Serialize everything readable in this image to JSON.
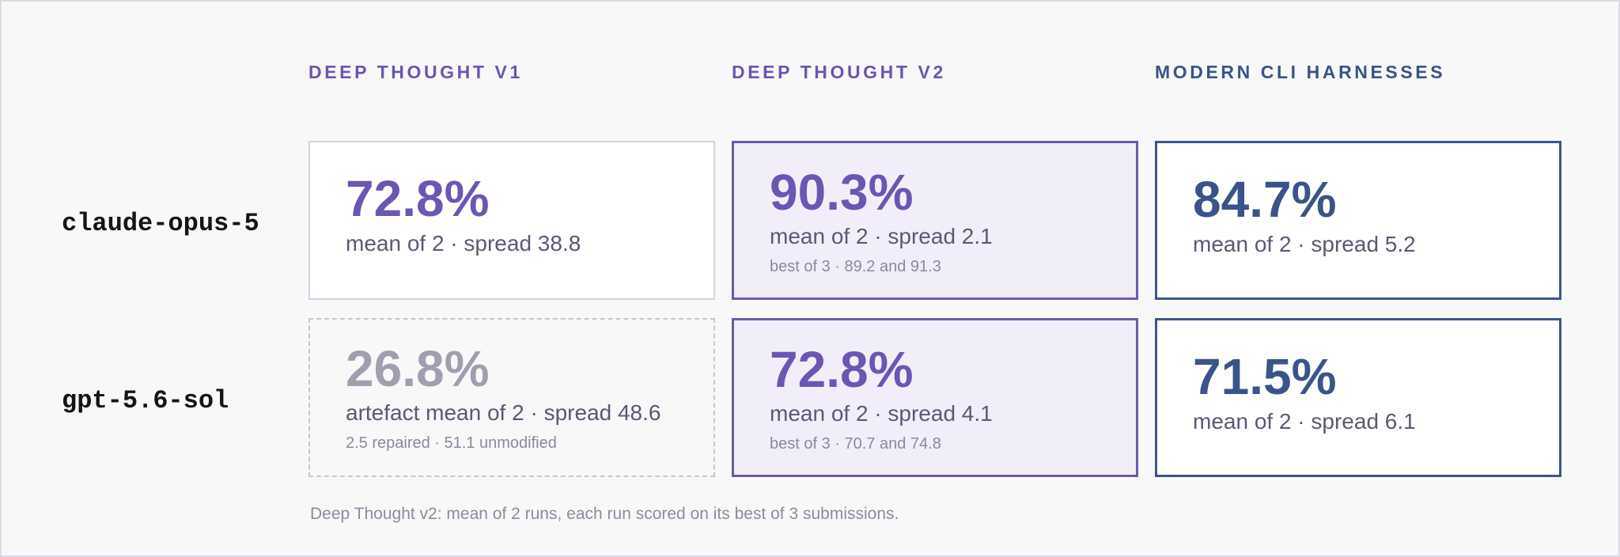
{
  "columns": [
    {
      "label": "DEEP THOUGHT V1",
      "color": "#6c55b3"
    },
    {
      "label": "DEEP THOUGHT V2",
      "color": "#6c55b3"
    },
    {
      "label": "MODERN CLI HARNESSES",
      "color": "#3a5489"
    }
  ],
  "rows": [
    {
      "model": "claude-opus-5",
      "cells": [
        {
          "value": "72.8%",
          "detail": "mean of 2 · spread 38.8"
        },
        {
          "value": "90.3%",
          "detail": "mean of 2 · spread 2.1",
          "note": "best of 3 · 89.2 and 91.3"
        },
        {
          "value": "84.7%",
          "detail": "mean of 2 · spread 5.2"
        }
      ]
    },
    {
      "model": "gpt-5.6-sol",
      "cells": [
        {
          "value": "26.8%",
          "detail": "artefact mean of 2 · spread 48.6",
          "note": "2.5 repaired · 51.1 unmodified"
        },
        {
          "value": "72.8%",
          "detail": "mean of 2 · spread 4.1",
          "note": "best of 3 · 70.7 and 74.8"
        },
        {
          "value": "71.5%",
          "detail": "mean of 2 · spread 6.1"
        }
      ]
    }
  ],
  "footnote": "Deep Thought v2: mean of 2 runs, each run scored on its best of 3 submissions.",
  "colors": {
    "v1_accent": "#6c55b3",
    "v2_accent": "#6d58b0",
    "cli_accent": "#3a5489",
    "muted": "#a29eb0"
  }
}
